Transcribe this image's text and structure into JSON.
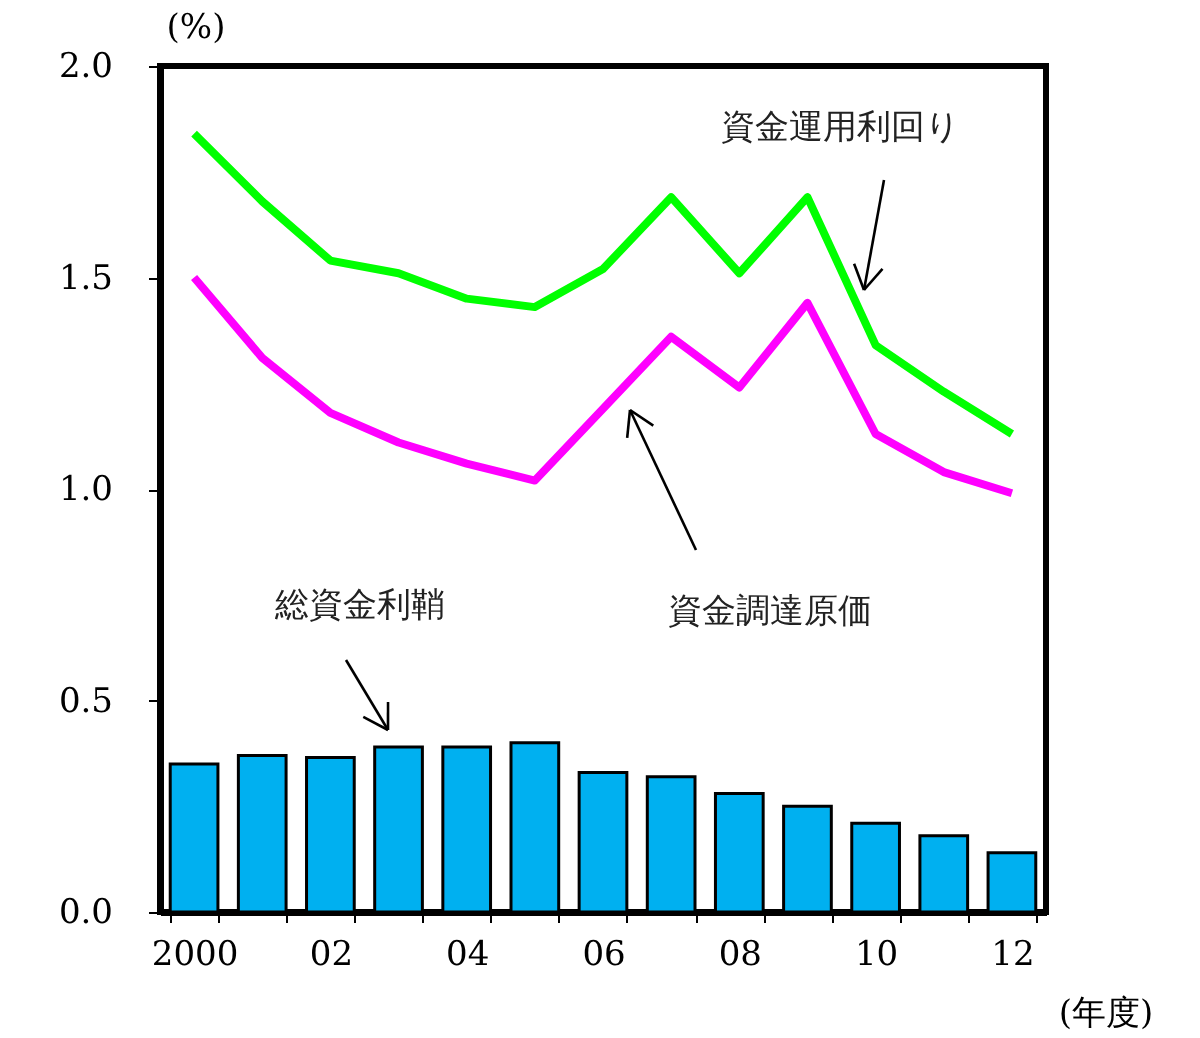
{
  "chart_data": {
    "type": "bar",
    "categories": [
      "2000",
      null,
      "02",
      null,
      "04",
      null,
      "06",
      null,
      "08",
      null,
      "10",
      null,
      "12"
    ],
    "xlabel": "(年度)",
    "ylabel": "(%)",
    "ylim": [
      0,
      2.0
    ],
    "yticks": [
      {
        "value": 0,
        "label": "0.0"
      },
      {
        "value": 0.5,
        "label": "0.5"
      },
      {
        "value": 1.0,
        "label": "1.0"
      },
      {
        "value": 1.5,
        "label": "1.5"
      },
      {
        "value": 2.0,
        "label": "2.0"
      }
    ],
    "series": [
      {
        "name": "総資金利鞘",
        "color": "#00b0f0",
        "values": [
          0.35,
          0.37,
          0.365,
          0.39,
          0.39,
          0.4,
          0.33,
          0.32,
          0.28,
          0.25,
          0.21,
          0.18,
          0.14
        ]
      },
      {
        "name": "資金運用利回り",
        "type": "line",
        "color": "#00ff00",
        "values": [
          1.84,
          1.68,
          1.54,
          1.51,
          1.45,
          1.43,
          1.52,
          1.69,
          1.51,
          1.69,
          1.34,
          1.23,
          1.13
        ]
      },
      {
        "name": "資金調達原価",
        "type": "line",
        "color": "#ff00ff",
        "values": [
          1.5,
          1.31,
          1.18,
          1.11,
          1.06,
          1.02,
          1.19,
          1.36,
          1.24,
          1.44,
          1.13,
          1.04,
          0.99
        ]
      }
    ],
    "grid": false
  }
}
